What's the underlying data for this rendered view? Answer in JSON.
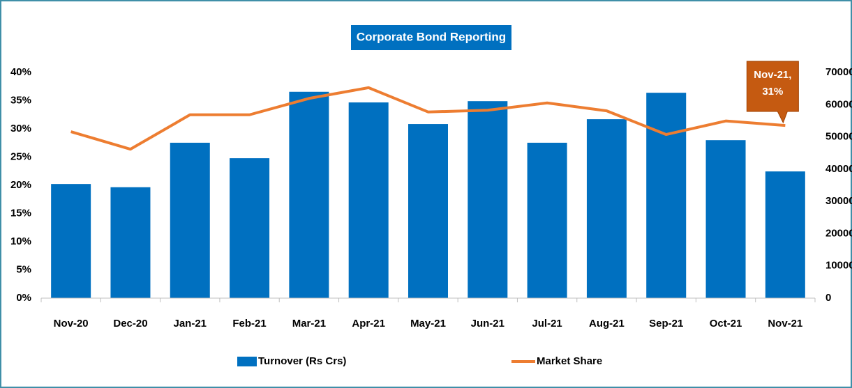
{
  "chart_data": {
    "type": "bar-line",
    "title": "Corporate Bond Reporting",
    "categories": [
      "Nov-20",
      "Dec-20",
      "Jan-21",
      "Feb-21",
      "Mar-21",
      "Apr-21",
      "May-21",
      "Jun-21",
      "Jul-21",
      "Aug-21",
      "Sep-21",
      "Oct-21",
      "Nov-21"
    ],
    "series": [
      {
        "name": "Turnover (Rs Crs)",
        "type": "bar",
        "axis": "y2",
        "color": "#0070c0",
        "values": [
          35400,
          34400,
          48200,
          43400,
          64000,
          60700,
          54000,
          61100,
          48200,
          55500,
          63700,
          49000,
          39300
        ]
      },
      {
        "name": "Market Share",
        "type": "line",
        "axis": "y",
        "color": "#ed7d31",
        "values": [
          29.5,
          26.4,
          32.5,
          32.5,
          35.4,
          37.3,
          33.0,
          33.3,
          34.6,
          33.2,
          29.0,
          31.4,
          30.6
        ]
      }
    ],
    "annotation": [
      "Nov-21,",
      "31%"
    ],
    "ylim": [
      0,
      40
    ],
    "yticks": [
      {
        "value": 0,
        "label": "0%"
      },
      {
        "value": 5,
        "label": "5%"
      },
      {
        "value": 10,
        "label": "10%"
      },
      {
        "value": 15,
        "label": "15%"
      },
      {
        "value": 20,
        "label": "20%"
      },
      {
        "value": 25,
        "label": "25%"
      },
      {
        "value": 30,
        "label": "30%"
      },
      {
        "value": 35,
        "label": "35%"
      },
      {
        "value": 40,
        "label": "40%"
      }
    ],
    "y2lim": [
      0,
      70000
    ],
    "y2ticks": [
      0,
      10000,
      20000,
      30000,
      40000,
      50000,
      60000,
      70000
    ],
    "legend": "bottom"
  }
}
